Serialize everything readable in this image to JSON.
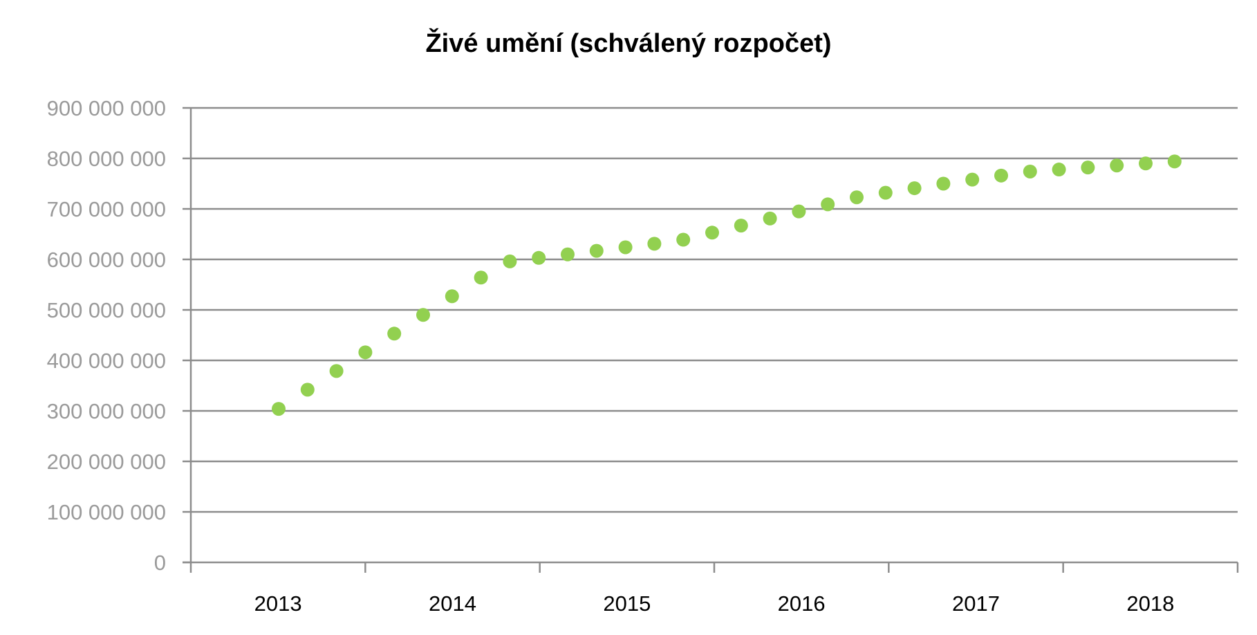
{
  "chart_data": {
    "type": "scatter",
    "title": "Živé umění (schválený rozpočet)",
    "xlabel": "",
    "ylabel": "",
    "grid": true,
    "legend": "none",
    "ylim": [
      0,
      900000000
    ],
    "y_ticks": [
      0,
      100000000,
      200000000,
      300000000,
      400000000,
      500000000,
      600000000,
      700000000,
      800000000,
      900000000
    ],
    "y_tick_labels": [
      "0",
      "100 000 000",
      "200 000 000",
      "300 000 000",
      "400 000 000",
      "500 000 000",
      "600 000 000",
      "700 000 000",
      "800 000 000",
      "900 000 000"
    ],
    "categories": [
      "2013",
      "2014",
      "2015",
      "2016",
      "2017",
      "2018"
    ],
    "marker_color": "#92d050",
    "series": [
      {
        "values": [
          304000000,
          342000000,
          379000000,
          416000000,
          453000000,
          490000000,
          527000000,
          564000000,
          596000000,
          603000000,
          610000000,
          617000000,
          624000000,
          631000000,
          639000000,
          653000000,
          667000000,
          681000000,
          695000000,
          709000000,
          723000000,
          732000000,
          741000000,
          750000000,
          758000000,
          766000000,
          774000000,
          778000000,
          782000000,
          786000000,
          790000000,
          794000000
        ]
      }
    ]
  }
}
